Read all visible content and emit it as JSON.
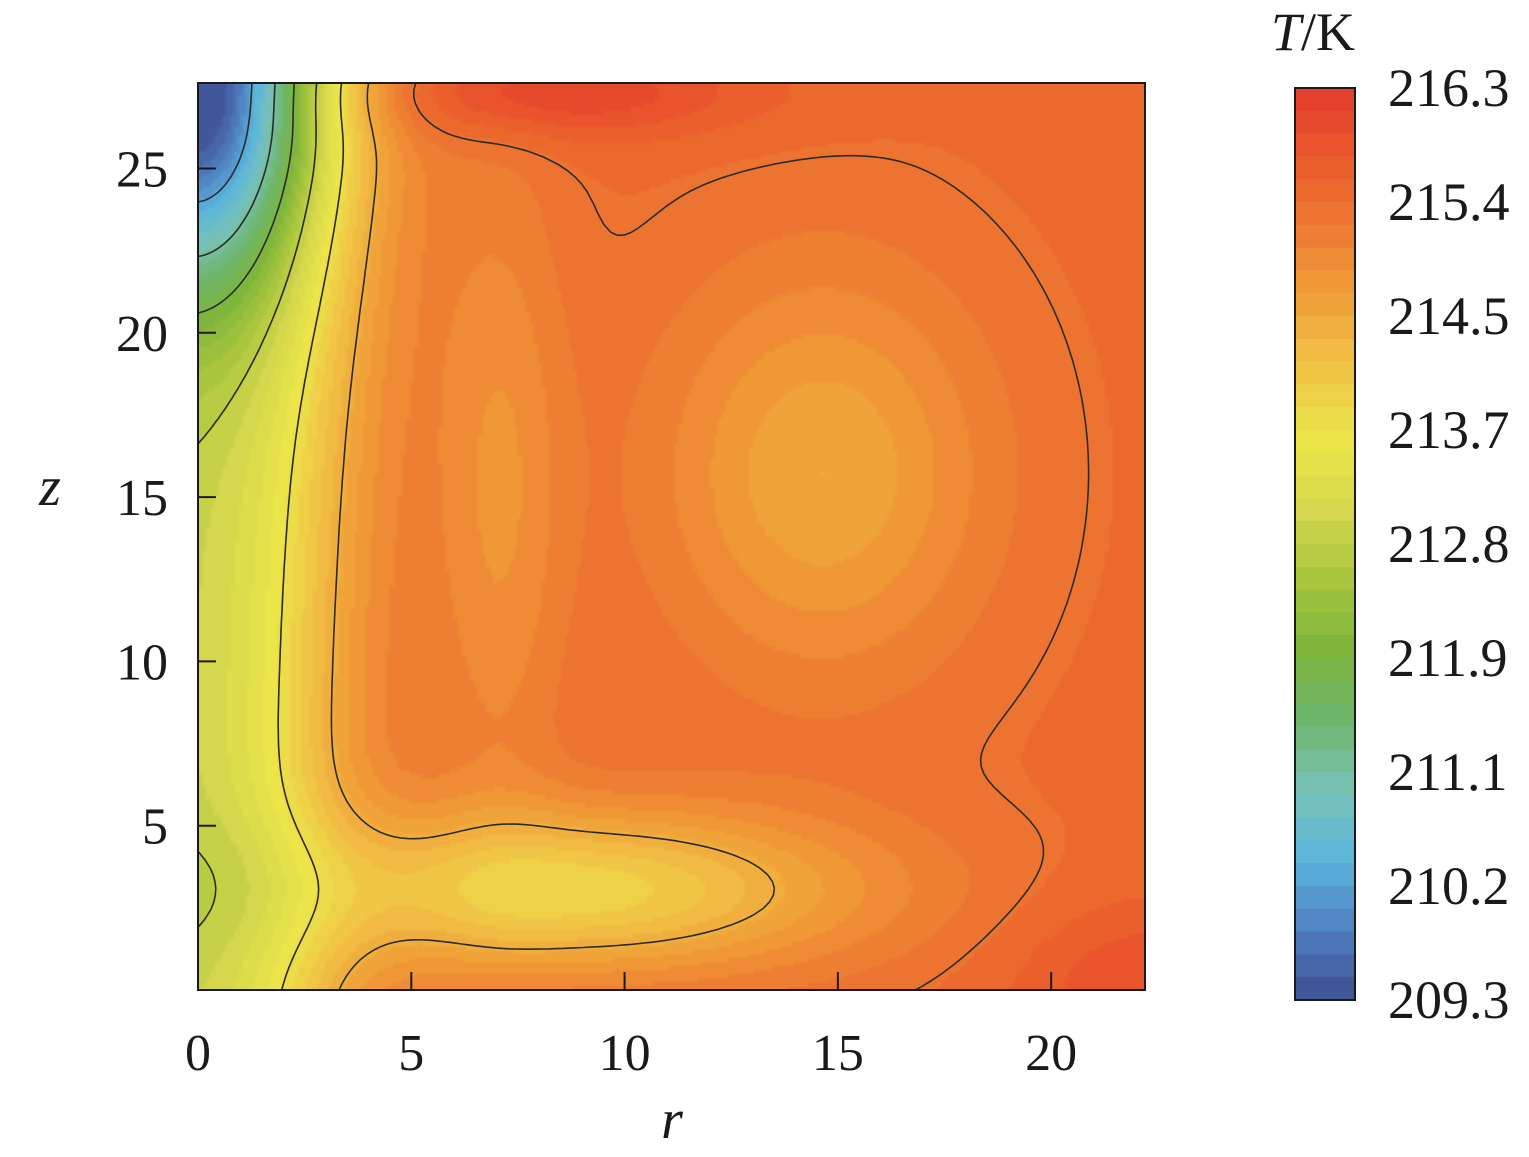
{
  "chart_data": {
    "type": "contour",
    "xlabel": "r",
    "ylabel": "z",
    "xlim": [
      0,
      22.2
    ],
    "ylim": [
      0,
      27.6
    ],
    "xticks": [
      0,
      5,
      10,
      15,
      20
    ],
    "yticks": [
      5,
      10,
      15,
      20,
      25
    ],
    "colorbar": {
      "title_var": "T",
      "title_unit": "/K",
      "min": 209.3,
      "max": 216.3,
      "tick_labels": [
        "216.3",
        "215.4",
        "214.5",
        "213.7",
        "212.8",
        "211.9",
        "211.1",
        "210.2",
        "209.3"
      ],
      "tick_values": [
        216.3,
        215.4,
        214.5,
        213.7,
        212.8,
        211.9,
        211.1,
        210.2,
        209.3
      ],
      "levels": 40,
      "colormap": [
        "#3f4f92",
        "#4f7fc0",
        "#5bb6dd",
        "#78c2b6",
        "#6fb66c",
        "#7db43b",
        "#a9c63e",
        "#d6d74c",
        "#ece64a",
        "#f1c346",
        "#f0a038",
        "#ee7b31",
        "#ea5a2c",
        "#e33b2c"
      ]
    },
    "contour_lines_K": [
      210.2,
      211.1,
      211.9,
      212.8,
      213.7,
      214.5,
      215.4
    ],
    "field_features": {
      "cold_core": "near r=0, z=27.6 (~209.3 K)",
      "warm_top": "r=8-9, z=27.6 (~216.3 K)",
      "warm_corner": "r=22, z=0 (~216 K)",
      "green_plume": "r=0-5, z=0-27 (~212.5-213 K)",
      "yellow_tongue": "r=5-16, z=2-6 (~214.5 K)"
    }
  }
}
